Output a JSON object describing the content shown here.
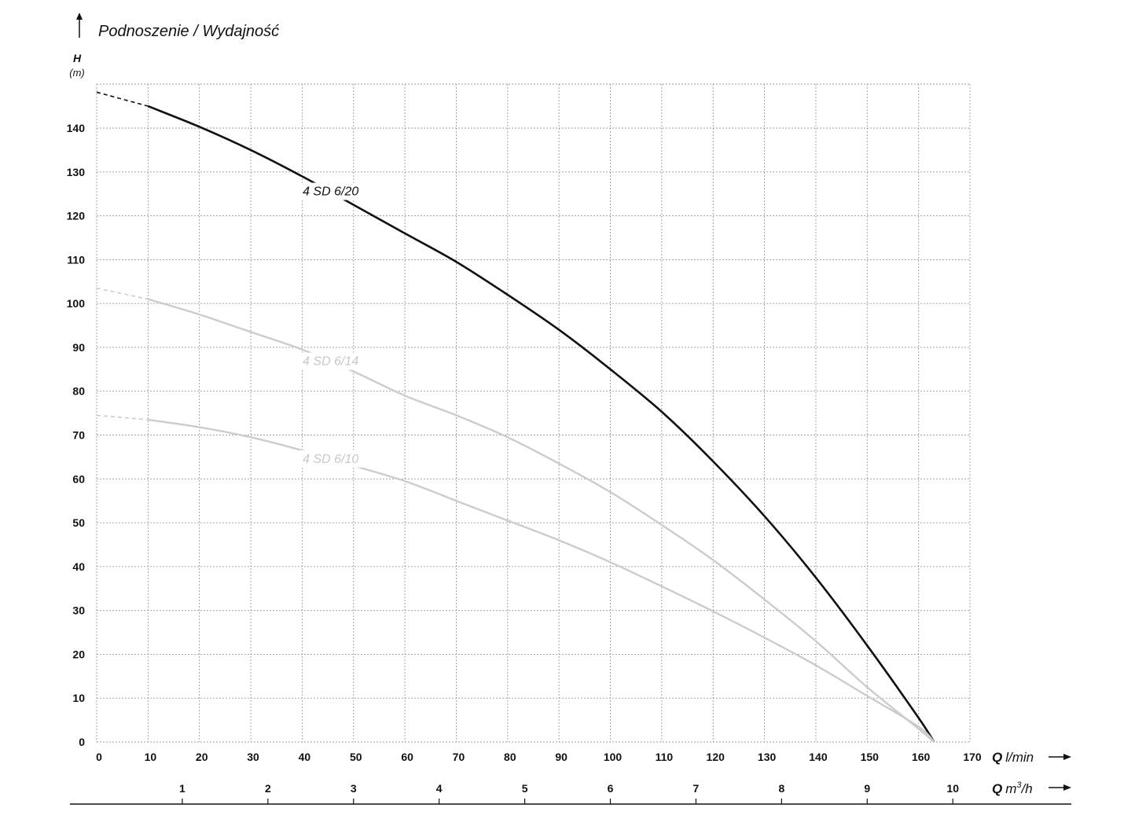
{
  "chart_data": {
    "type": "line",
    "title": "Podnoszenie / Wydajność",
    "ylabel_symbol": "H",
    "ylabel_unit": "(m)",
    "xlabel_symbol": "Q",
    "xlabel_unit": "l/min",
    "x2label_symbol": "Q",
    "x2label_unit_base": "m",
    "x2label_unit_exp": "3",
    "x2label_unit_tail": "/h",
    "xlim": [
      0,
      170
    ],
    "ylim": [
      0,
      150
    ],
    "grid": true,
    "x_ticks": [
      "0",
      "10",
      "20",
      "30",
      "40",
      "50",
      "60",
      "70",
      "80",
      "90",
      "100",
      "110",
      "120",
      "130",
      "140",
      "150",
      "160",
      "170"
    ],
    "y_ticks": [
      "0",
      "10",
      "20",
      "30",
      "40",
      "50",
      "60",
      "70",
      "80",
      "90",
      "100",
      "110",
      "120",
      "130",
      "140"
    ],
    "x2_ticks": [
      "1",
      "2",
      "3",
      "4",
      "5",
      "6",
      "7",
      "8",
      "9",
      "10"
    ],
    "series": [
      {
        "name": "4 SD 6/20",
        "color": "#111111",
        "x": [
          0,
          10,
          20,
          30,
          40,
          50,
          60,
          70,
          80,
          90,
          100,
          110,
          120,
          130,
          140,
          150,
          160,
          163
        ],
        "y": [
          148.2,
          145,
          140.3,
          135,
          129,
          122.5,
          116,
          109.5,
          102,
          94,
          85,
          75.3,
          64,
          51.5,
          37.5,
          22,
          5.5,
          0
        ]
      },
      {
        "name": "4 SD 6/14",
        "color": "#cccccc",
        "x": [
          0,
          10,
          20,
          30,
          40,
          50,
          60,
          70,
          80,
          90,
          100,
          110,
          120,
          130,
          140,
          150,
          160,
          163
        ],
        "y": [
          103.5,
          101,
          97.5,
          93.5,
          89.5,
          84.5,
          79,
          74.5,
          69.5,
          63.5,
          57,
          49.5,
          41.5,
          32.5,
          23,
          12.5,
          3,
          0
        ]
      },
      {
        "name": "4 SD 6/10",
        "color": "#cccccc",
        "x": [
          0,
          10,
          20,
          30,
          40,
          50,
          60,
          70,
          80,
          90,
          100,
          110,
          120,
          130,
          140,
          150,
          160,
          163
        ],
        "y": [
          74.5,
          73.5,
          71.8,
          69.5,
          66.5,
          63,
          59.5,
          55,
          50.5,
          46,
          41,
          35.5,
          29.8,
          23.8,
          17.5,
          10.5,
          3.5,
          0
        ]
      }
    ]
  }
}
